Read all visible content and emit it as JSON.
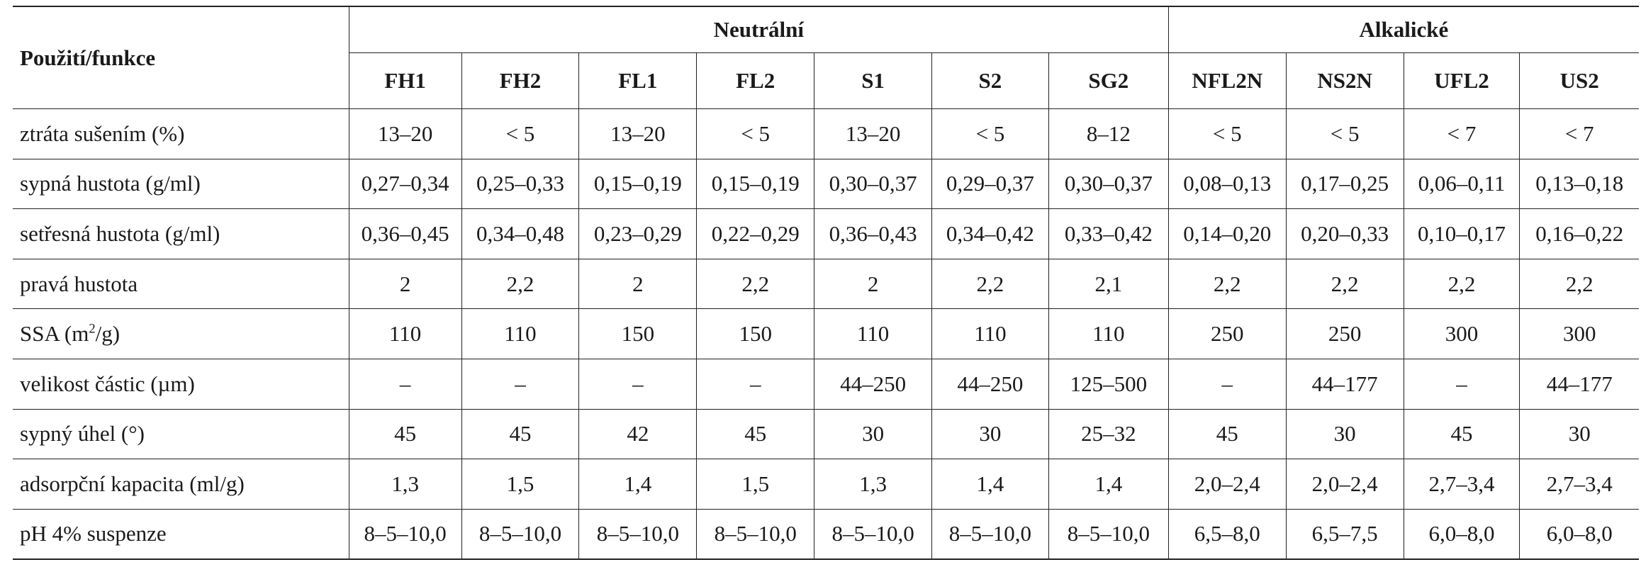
{
  "table": {
    "corner_label": "Použití/funkce",
    "groups": [
      {
        "label": "Neutrální",
        "span": 7
      },
      {
        "label": "Alkalické",
        "span": 4
      }
    ],
    "columns": [
      "FH1",
      "FH2",
      "FL1",
      "FL2",
      "S1",
      "S2",
      "SG2",
      "NFL2N",
      "NS2N",
      "UFL2",
      "US2"
    ],
    "rows": [
      {
        "label": "ztráta sušením (%)",
        "values": [
          "13–20",
          "< 5",
          "13–20",
          "< 5",
          "13–20",
          "< 5",
          "8–12",
          "< 5",
          "< 5",
          "< 7",
          "< 7"
        ]
      },
      {
        "label": "sypná hustota (g/ml)",
        "values": [
          "0,27–0,34",
          "0,25–0,33",
          "0,15–0,19",
          "0,15–0,19",
          "0,30–0,37",
          "0,29–0,37",
          "0,30–0,37",
          "0,08–0,13",
          "0,17–0,25",
          "0,06–0,11",
          "0,13–0,18"
        ]
      },
      {
        "label": "setřesná hustota (g/ml)",
        "values": [
          "0,36–0,45",
          "0,34–0,48",
          "0,23–0,29",
          "0,22–0,29",
          "0,36–0,43",
          "0,34–0,42",
          "0,33–0,42",
          "0,14–0,20",
          "0,20–0,33",
          "0,10–0,17",
          "0,16–0,22"
        ]
      },
      {
        "label": "pravá hustota",
        "values": [
          "2",
          "2,2",
          "2",
          "2,2",
          "2",
          "2,2",
          "2,1",
          "2,2",
          "2,2",
          "2,2",
          "2,2"
        ]
      },
      {
        "label_prefix": "SSA (m",
        "label_sup": "2",
        "label_suffix": "/g)",
        "values": [
          "110",
          "110",
          "150",
          "150",
          "110",
          "110",
          "110",
          "250",
          "250",
          "300",
          "300"
        ]
      },
      {
        "label": "velikost částic (µm)",
        "values": [
          "–",
          "–",
          "–",
          "–",
          "44–250",
          "44–250",
          "125–500",
          "–",
          "44–177",
          "–",
          "44–177"
        ]
      },
      {
        "label": "sypný úhel (°)",
        "values": [
          "45",
          "45",
          "42",
          "45",
          "30",
          "30",
          "25–32",
          "45",
          "30",
          "45",
          "30"
        ]
      },
      {
        "label": "adsorpční kapacita (ml/g)",
        "values": [
          "1,3",
          "1,5",
          "1,4",
          "1,5",
          "1,3",
          "1,4",
          "1,4",
          "2,0–2,4",
          "2,0–2,4",
          "2,7–3,4",
          "2,7–3,4"
        ]
      },
      {
        "label": "pH 4% suspenze",
        "values": [
          "8–5–10,0",
          "8–5–10,0",
          "8–5–10,0",
          "8–5–10,0",
          "8–5–10,0",
          "8–5–10,0",
          "8–5–10,0",
          "6,5–8,0",
          "6,5–7,5",
          "6,0–8,0",
          "6,0–8,0"
        ]
      }
    ]
  }
}
